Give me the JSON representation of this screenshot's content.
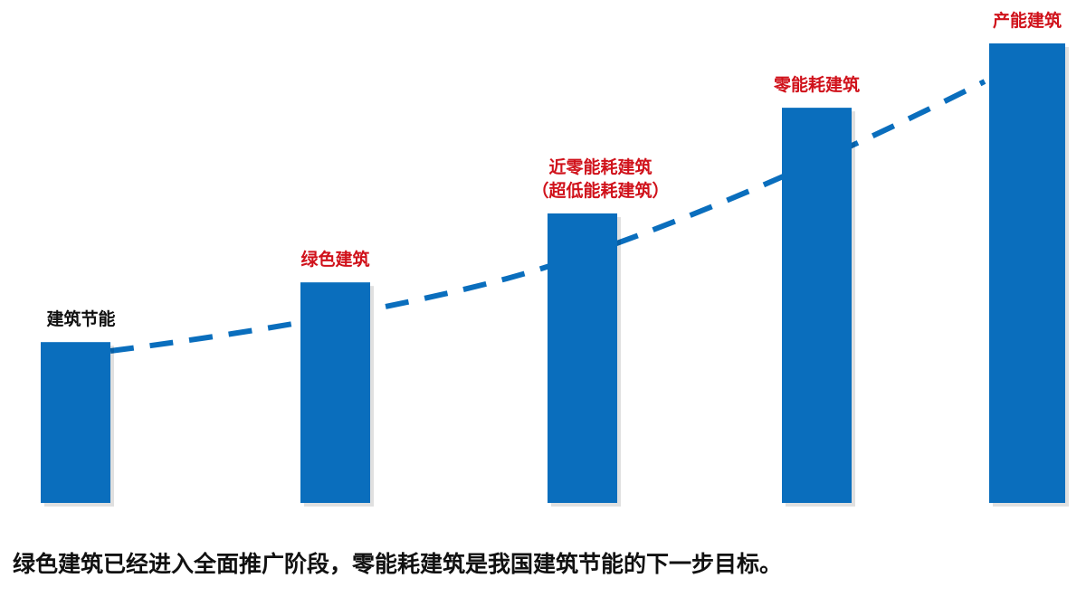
{
  "chart_data": {
    "type": "bar",
    "categories": [
      "建筑节能",
      "绿色建筑",
      "近零能耗建筑\n（超低能耗建筑）",
      "零能耗建筑",
      "产能建筑"
    ],
    "category_lines": [
      [
        "建筑节能"
      ],
      [
        "绿色建筑"
      ],
      [
        "近零能耗建筑",
        "（超低能耗建筑）"
      ],
      [
        "零能耗建筑"
      ],
      [
        "产能建筑"
      ]
    ],
    "values_relative_percent": [
      35,
      48,
      63,
      86,
      100
    ],
    "label_colors": [
      "#111111",
      "#d0121b",
      "#d0121b",
      "#d0121b",
      "#d0121b"
    ],
    "bar_color": "#0a6ebd",
    "trend_line": {
      "style": "dashed",
      "color": "#0a6ebd"
    },
    "axes_shown": false,
    "grid": false
  },
  "caption": "绿色建筑已经进入全面推广阶段，零能耗建筑是我国建筑节能的下一步目标。"
}
